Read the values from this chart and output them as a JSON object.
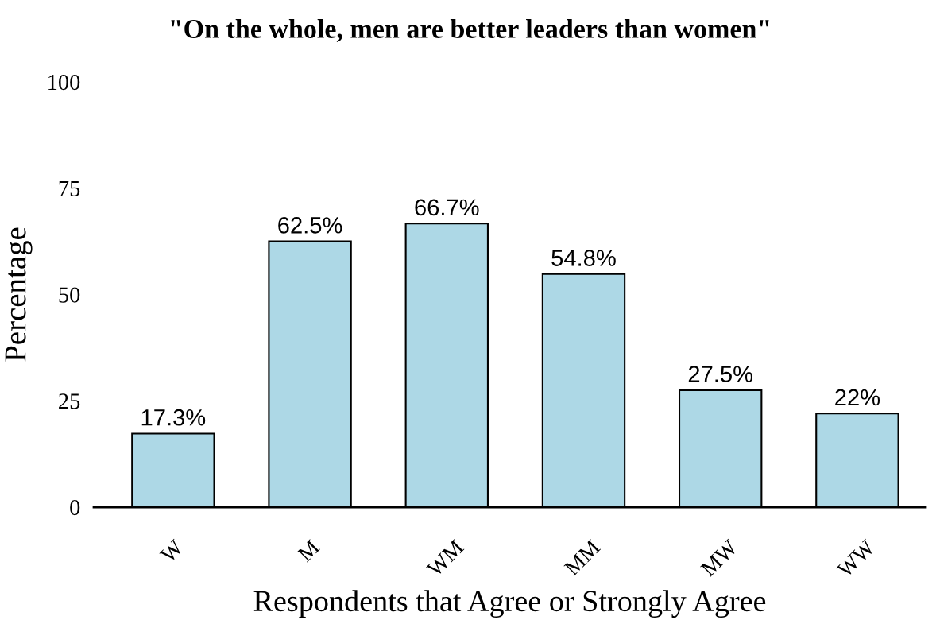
{
  "chart_data": {
    "type": "bar",
    "title": "\"On the whole, men are better leaders than women\"",
    "xlabel": "Respondents that Agree or Strongly Agree",
    "ylabel": "Percentage",
    "categories": [
      "W",
      "M",
      "WM",
      "MM",
      "MW",
      "WW"
    ],
    "values": [
      17.3,
      62.5,
      66.7,
      54.8,
      27.5,
      22
    ],
    "value_labels": [
      "17.3%",
      "62.5%",
      "66.7%",
      "54.8%",
      "27.5%",
      "22%"
    ],
    "color": "#add8e6",
    "ylim": [
      0,
      100
    ],
    "yticks": [
      0,
      25,
      50,
      75,
      100
    ],
    "grid": false
  }
}
